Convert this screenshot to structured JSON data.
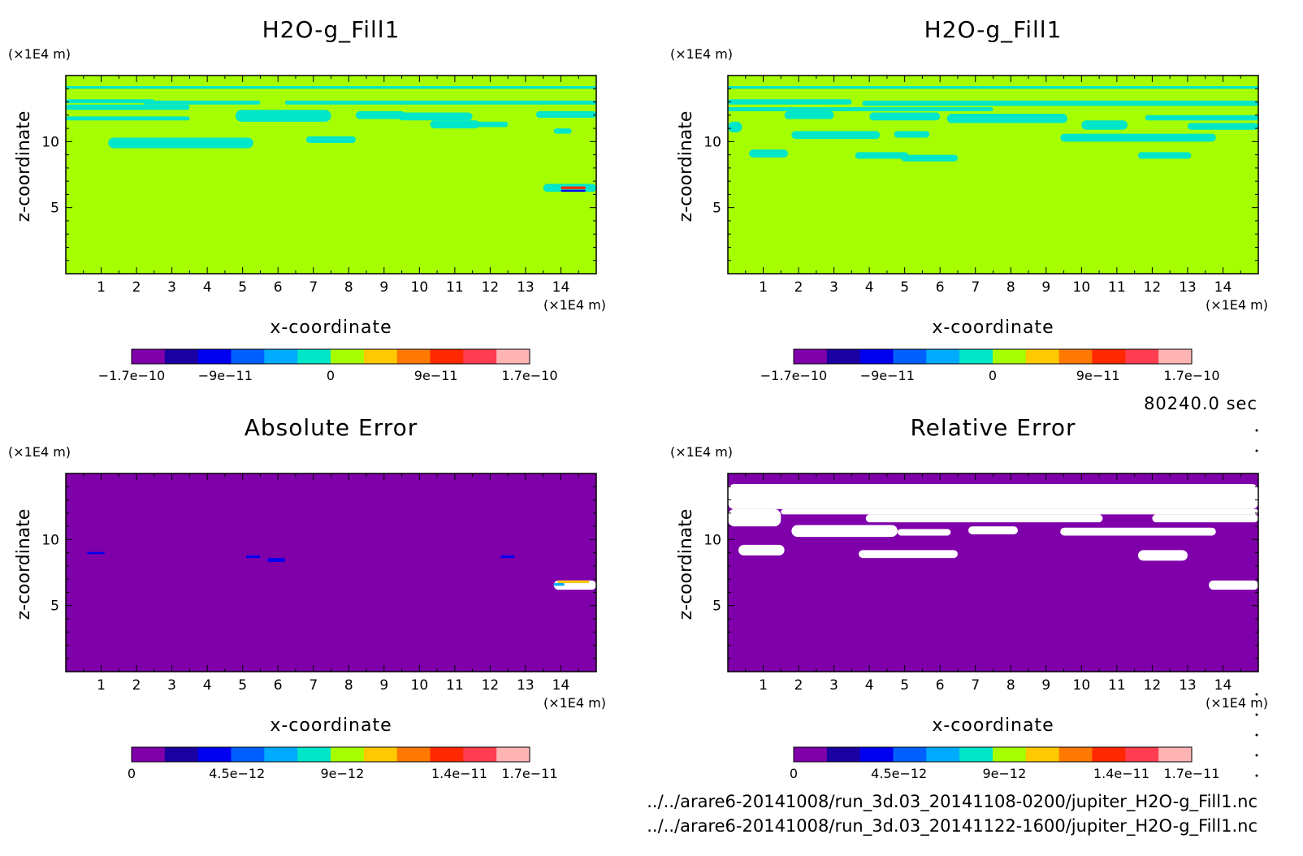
{
  "time_label": "80240.0 sec",
  "file_paths": [
    "../../arare6-20141008/run_3d.03_20141108-0200/jupiter_H2O-g_Fill1.nc",
    "../../arare6-20141008/run_3d.03_20141122-1600/jupiter_H2O-g_Fill1.nc"
  ],
  "palette": [
    "#7f00aa",
    "#1a00a0",
    "#0000f0",
    "#0060ff",
    "#00aaff",
    "#00e6c8",
    "#a6ff00",
    "#ffc800",
    "#ff7800",
    "#ff2800",
    "#ff3c50",
    "#ffb4b4"
  ],
  "chart_data": [
    {
      "type": "heatmap",
      "title": "H2O-g_Fill1",
      "xlabel": "x-coordinate",
      "ylabel": "z-coordinate",
      "x_unit": "(×1E4 m)",
      "y_unit": "(×1E4 m)",
      "xlim": [
        0,
        15
      ],
      "ylim": [
        0,
        15
      ],
      "x_ticks": [
        1,
        2,
        3,
        4,
        5,
        6,
        7,
        8,
        9,
        10,
        11,
        12,
        13,
        14
      ],
      "y_ticks": [
        5,
        10
      ],
      "background_color": "#a6ff00",
      "colorbar": {
        "range": [
          -1.7e-10,
          1.7e-10
        ],
        "ticks": [
          "-1.7e-10",
          "-9e-11",
          "0",
          "9e-11",
          "1.7e-10"
        ]
      },
      "contours": [
        {
          "x": [
            0,
            15
          ],
          "z": [
            14.0,
            14.2
          ],
          "color": "#00e6c8"
        },
        {
          "x": [
            0,
            2.5
          ],
          "z": [
            12.9,
            13.2
          ],
          "color": "#00e6c8"
        },
        {
          "x": [
            2.2,
            5.5
          ],
          "z": [
            12.8,
            13.1
          ],
          "color": "#00e6c8"
        },
        {
          "x": [
            6.2,
            15
          ],
          "z": [
            12.8,
            13.1
          ],
          "color": "#00e6c8"
        },
        {
          "x": [
            0,
            3.5
          ],
          "z": [
            12.4,
            12.8
          ],
          "color": "#00e6c8"
        },
        {
          "x": [
            0,
            3.5
          ],
          "z": [
            11.6,
            11.9
          ],
          "color": "#00e6c8"
        },
        {
          "x": [
            4.8,
            7.5
          ],
          "z": [
            11.5,
            12.4
          ],
          "color": "#00e6c8"
        },
        {
          "x": [
            8.2,
            9.6
          ],
          "z": [
            11.7,
            12.3
          ],
          "color": "#00e6c8"
        },
        {
          "x": [
            9.4,
            11.5
          ],
          "z": [
            11.6,
            12.2
          ],
          "color": "#00e6c8"
        },
        {
          "x": [
            13.3,
            15
          ],
          "z": [
            11.8,
            12.3
          ],
          "color": "#00e6c8"
        },
        {
          "x": [
            10.3,
            11.7
          ],
          "z": [
            11.0,
            11.6
          ],
          "color": "#00e6c8"
        },
        {
          "x": [
            11.5,
            12.5
          ],
          "z": [
            11.1,
            11.5
          ],
          "color": "#00e6c8"
        },
        {
          "x": [
            13.8,
            14.3
          ],
          "z": [
            10.6,
            11.0
          ],
          "color": "#00e6c8"
        },
        {
          "x": [
            1.2,
            5.3
          ],
          "z": [
            9.5,
            10.3
          ],
          "color": "#00e6c8"
        },
        {
          "x": [
            6.8,
            8.2
          ],
          "z": [
            9.9,
            10.4
          ],
          "color": "#00e6c8"
        },
        {
          "x": [
            13.5,
            15
          ],
          "z": [
            6.2,
            6.8
          ],
          "color": "#00e6c8"
        },
        {
          "x": [
            14.0,
            14.7
          ],
          "z": [
            6.4,
            6.6
          ],
          "color": "#ff2800"
        },
        {
          "x": [
            14.0,
            14.7
          ],
          "z": [
            6.2,
            6.35
          ],
          "color": "#0000f0"
        }
      ]
    },
    {
      "type": "heatmap",
      "title": "H2O-g_Fill1",
      "xlabel": "x-coordinate",
      "ylabel": "z-coordinate",
      "x_unit": "(×1E4 m)",
      "y_unit": "(×1E4 m)",
      "xlim": [
        0,
        15
      ],
      "ylim": [
        0,
        15
      ],
      "x_ticks": [
        1,
        2,
        3,
        4,
        5,
        6,
        7,
        8,
        9,
        10,
        11,
        12,
        13,
        14
      ],
      "y_ticks": [
        5,
        10
      ],
      "background_color": "#a6ff00",
      "colorbar": {
        "range": [
          -1.7e-10,
          1.7e-10
        ],
        "ticks": [
          "-1.7e-10",
          "-9e-11",
          "0",
          "9e-11",
          "1.7e-10"
        ]
      },
      "contours": [
        {
          "x": [
            0,
            15
          ],
          "z": [
            14.0,
            14.2
          ],
          "color": "#00e6c8"
        },
        {
          "x": [
            0,
            3.5
          ],
          "z": [
            12.8,
            13.2
          ],
          "color": "#00e6c8"
        },
        {
          "x": [
            3.8,
            15
          ],
          "z": [
            12.7,
            13.1
          ],
          "color": "#00e6c8"
        },
        {
          "x": [
            0,
            7.5
          ],
          "z": [
            12.3,
            12.6
          ],
          "color": "#00e6c8"
        },
        {
          "x": [
            1.6,
            3.0
          ],
          "z": [
            11.7,
            12.3
          ],
          "color": "#00e6c8"
        },
        {
          "x": [
            4.0,
            6.0
          ],
          "z": [
            11.6,
            12.2
          ],
          "color": "#00e6c8"
        },
        {
          "x": [
            6.2,
            9.6
          ],
          "z": [
            11.4,
            12.1
          ],
          "color": "#00e6c8"
        },
        {
          "x": [
            11.8,
            15
          ],
          "z": [
            11.6,
            12.0
          ],
          "color": "#00e6c8"
        },
        {
          "x": [
            0,
            0.4
          ],
          "z": [
            10.7,
            11.5
          ],
          "color": "#00e6c8"
        },
        {
          "x": [
            10.0,
            11.3
          ],
          "z": [
            10.9,
            11.6
          ],
          "color": "#00e6c8"
        },
        {
          "x": [
            13.0,
            15
          ],
          "z": [
            10.9,
            11.4
          ],
          "color": "#00e6c8"
        },
        {
          "x": [
            1.8,
            4.3
          ],
          "z": [
            10.2,
            10.8
          ],
          "color": "#00e6c8"
        },
        {
          "x": [
            4.7,
            5.7
          ],
          "z": [
            10.3,
            10.8
          ],
          "color": "#00e6c8"
        },
        {
          "x": [
            9.4,
            13.8
          ],
          "z": [
            10.0,
            10.6
          ],
          "color": "#00e6c8"
        },
        {
          "x": [
            0.6,
            1.7
          ],
          "z": [
            8.8,
            9.4
          ],
          "color": "#00e6c8"
        },
        {
          "x": [
            3.6,
            5.1
          ],
          "z": [
            8.7,
            9.2
          ],
          "color": "#00e6c8"
        },
        {
          "x": [
            4.9,
            6.5
          ],
          "z": [
            8.5,
            9.0
          ],
          "color": "#00e6c8"
        },
        {
          "x": [
            11.6,
            13.1
          ],
          "z": [
            8.7,
            9.2
          ],
          "color": "#00e6c8"
        }
      ]
    },
    {
      "type": "heatmap",
      "title": "Absolute Error",
      "xlabel": "x-coordinate",
      "ylabel": "z-coordinate",
      "x_unit": "(×1E4 m)",
      "y_unit": "(×1E4 m)",
      "xlim": [
        0,
        15
      ],
      "ylim": [
        0,
        15
      ],
      "x_ticks": [
        1,
        2,
        3,
        4,
        5,
        6,
        7,
        8,
        9,
        10,
        11,
        12,
        13,
        14
      ],
      "y_ticks": [
        5,
        10
      ],
      "background_color": "#7f00aa",
      "colorbar": {
        "range": [
          0,
          1.7e-11
        ],
        "ticks": [
          "0",
          "4.5e-12",
          "9e-12",
          "1.4e-11",
          "1.7e-11"
        ]
      },
      "contours": [
        {
          "x": [
            0.6,
            1.1
          ],
          "z": [
            8.9,
            9.05
          ],
          "color": "#0000f0"
        },
        {
          "x": [
            5.1,
            5.5
          ],
          "z": [
            8.6,
            8.8
          ],
          "color": "#0000f0"
        },
        {
          "x": [
            5.7,
            6.2
          ],
          "z": [
            8.3,
            8.6
          ],
          "color": "#0000f0"
        },
        {
          "x": [
            12.3,
            12.7
          ],
          "z": [
            8.6,
            8.8
          ],
          "color": "#0000f0"
        },
        {
          "x": [
            13.8,
            15
          ],
          "z": [
            6.2,
            6.9
          ],
          "color": "#ffffff"
        },
        {
          "x": [
            13.9,
            14.8
          ],
          "z": [
            6.7,
            6.9
          ],
          "color": "#ffc800"
        },
        {
          "x": [
            13.8,
            14.1
          ],
          "z": [
            6.5,
            6.7
          ],
          "color": "#00aaff"
        }
      ]
    },
    {
      "type": "heatmap",
      "title": "Relative Error",
      "xlabel": "x-coordinate",
      "ylabel": "z-coordinate",
      "x_unit": "(×1E4 m)",
      "y_unit": "(×1E4 m)",
      "xlim": [
        0,
        15
      ],
      "ylim": [
        0,
        15
      ],
      "x_ticks": [
        1,
        2,
        3,
        4,
        5,
        6,
        7,
        8,
        9,
        10,
        11,
        12,
        13,
        14
      ],
      "y_ticks": [
        5,
        10
      ],
      "background_color": "#7f00aa",
      "colorbar": {
        "range": [
          0,
          1.7e-11
        ],
        "ticks": [
          "0",
          "4.5e-12",
          "9e-12",
          "1.4e-11",
          "1.7e-11"
        ]
      },
      "contours": [
        {
          "x": [
            0,
            15
          ],
          "z": [
            12.3,
            14.2
          ],
          "color": "#ffffff"
        },
        {
          "x": [
            0,
            1.5
          ],
          "z": [
            11.0,
            12.3
          ],
          "color": "#ffffff"
        },
        {
          "x": [
            1.5,
            15
          ],
          "z": [
            11.9,
            12.3
          ],
          "color": "#ffffff"
        },
        {
          "x": [
            3.9,
            10.6
          ],
          "z": [
            11.3,
            11.9
          ],
          "color": "#ffffff"
        },
        {
          "x": [
            12.0,
            15
          ],
          "z": [
            11.3,
            11.9
          ],
          "color": "#ffffff"
        },
        {
          "x": [
            1.8,
            4.8
          ],
          "z": [
            10.2,
            11.1
          ],
          "color": "#ffffff"
        },
        {
          "x": [
            4.8,
            6.3
          ],
          "z": [
            10.3,
            10.8
          ],
          "color": "#ffffff"
        },
        {
          "x": [
            6.8,
            8.2
          ],
          "z": [
            10.4,
            11.0
          ],
          "color": "#ffffff"
        },
        {
          "x": [
            9.4,
            13.8
          ],
          "z": [
            10.3,
            10.9
          ],
          "color": "#ffffff"
        },
        {
          "x": [
            0.3,
            1.6
          ],
          "z": [
            8.8,
            9.6
          ],
          "color": "#ffffff"
        },
        {
          "x": [
            3.7,
            6.5
          ],
          "z": [
            8.6,
            9.2
          ],
          "color": "#ffffff"
        },
        {
          "x": [
            11.6,
            13.0
          ],
          "z": [
            8.4,
            9.2
          ],
          "color": "#ffffff"
        },
        {
          "x": [
            13.6,
            15
          ],
          "z": [
            6.2,
            6.9
          ],
          "color": "#ffffff"
        }
      ]
    }
  ]
}
